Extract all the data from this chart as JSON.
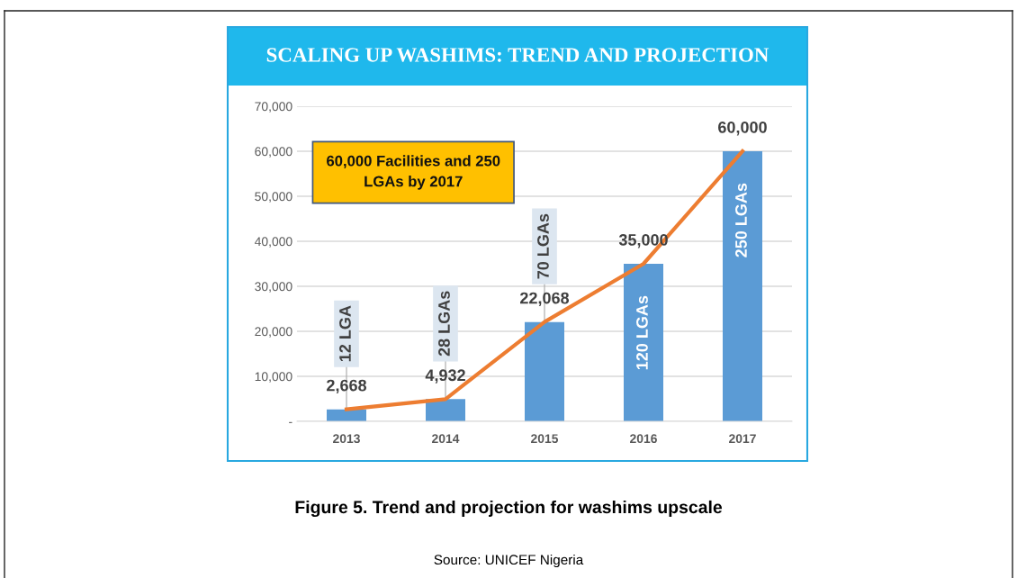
{
  "chart_data": {
    "type": "bar",
    "title": "SCALING UP WASHIMS: TREND AND PROJECTION",
    "categories": [
      "2013",
      "2014",
      "2015",
      "2016",
      "2017"
    ],
    "series": [
      {
        "color": "#5b9bd5",
        "values": [
          2668,
          4932,
          22068,
          35000,
          60000
        ],
        "value_labels": [
          "2,668",
          "4,932",
          "22,068",
          "35,000",
          "60,000"
        ]
      },
      {
        "type": "line",
        "color": "#ed7d31",
        "values": [
          2668,
          4932,
          22068,
          35000,
          60000
        ]
      }
    ],
    "ylim": [
      0,
      70000
    ],
    "yticks": [
      {
        "value": 0,
        "label": "-"
      },
      {
        "value": 10000,
        "label": "10,000"
      },
      {
        "value": 20000,
        "label": "20,000"
      },
      {
        "value": 30000,
        "label": "30,000"
      },
      {
        "value": 40000,
        "label": "40,000"
      },
      {
        "value": 50000,
        "label": "50,000"
      },
      {
        "value": 60000,
        "label": "60,000"
      },
      {
        "value": 70000,
        "label": "70,000"
      }
    ],
    "grid": "y",
    "annotations": [
      "60,000 Facilities and 250 LGAs by 2017",
      "Figure 5. Trend and projection for washims upscale",
      "Source: UNICEF Nigeria",
      {
        "text": "12 LGA",
        "x": "2013",
        "y": 2668
      },
      {
        "text": "28 LGAs",
        "x": "2014",
        "y": 4932
      },
      {
        "text": "70 LGAs",
        "x": "2015",
        "y": 22068
      },
      {
        "text": "120 LGAs",
        "x": "2016",
        "y": 35000
      },
      {
        "text": "250 LGAs",
        "x": "2017",
        "y": 60000
      }
    ]
  }
}
